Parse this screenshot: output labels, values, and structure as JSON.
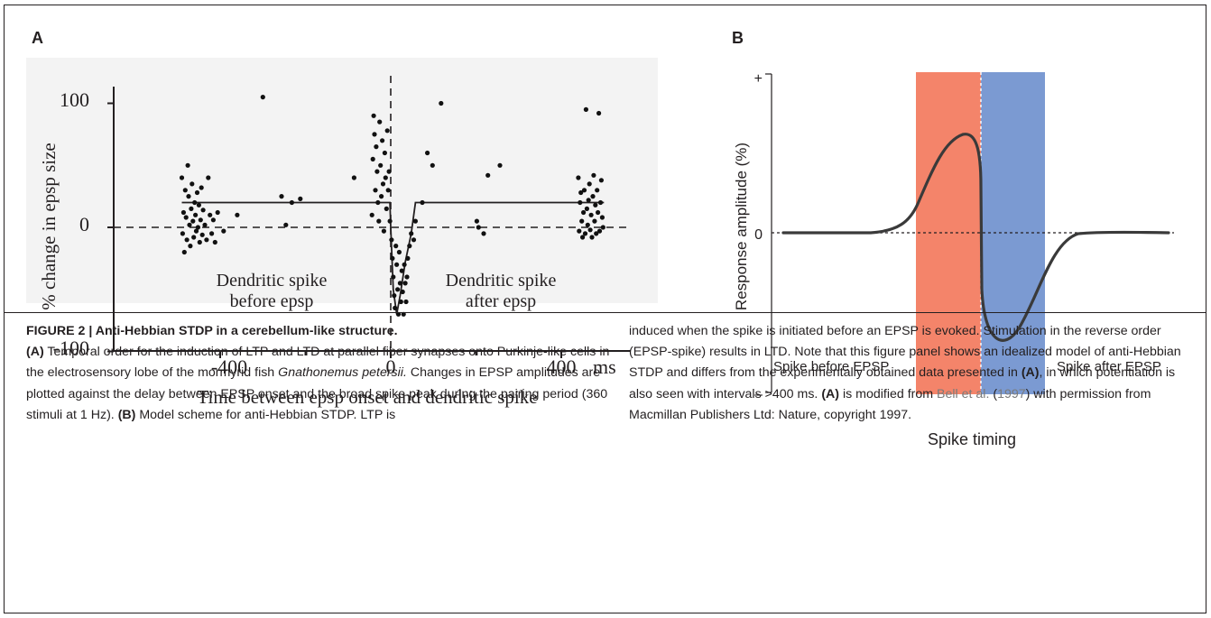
{
  "panel_a": {
    "letter": "A",
    "ylabel": "% change in epsp size",
    "xlabel": "Time between epsp onset and dendritic spike",
    "yticks": [
      "100",
      "0",
      "-100"
    ],
    "xticks": [
      "-400",
      "0",
      "400"
    ],
    "x_unit": "ms",
    "annot_before_1": "Dendritic spike",
    "annot_before_2": "before epsp",
    "annot_after_1": "Dendritic spike",
    "annot_after_2": "after epsp"
  },
  "panel_b": {
    "letter": "B",
    "ylabel": "Response amplitude (%)",
    "xlabel": "Spike timing",
    "tick_plus": "+",
    "tick_zero": "0",
    "tick_minus": "–",
    "left_label": "Spike before EPSP",
    "right_label": "Spike after EPSP",
    "colors": {
      "ltp_band": "#f4846a",
      "ltd_band": "#7b9ad2",
      "curve": "#3a3a3a"
    }
  },
  "chart_data": [
    {
      "type": "scatter",
      "panel": "A",
      "xlabel": "Time between epsp onset and dendritic spike",
      "x_unit": "ms",
      "ylabel": "% change in epsp size",
      "xlim": [
        -560,
        560
      ],
      "ylim": [
        -100,
        120
      ],
      "xticks": [
        -400,
        0,
        400
      ],
      "yticks": [
        100,
        0,
        -100
      ],
      "reference_lines": [
        {
          "orientation": "horizontal",
          "y": 0,
          "style": "dashed"
        },
        {
          "orientation": "vertical",
          "x": 0,
          "style": "dashed"
        }
      ],
      "series": [
        {
          "kind": "points",
          "points": [
            [
              -490,
              40
            ],
            [
              -488,
              -5
            ],
            [
              -486,
              12
            ],
            [
              -484,
              -20
            ],
            [
              -482,
              30
            ],
            [
              -480,
              8
            ],
            [
              -478,
              -10
            ],
            [
              -476,
              50
            ],
            [
              -474,
              25
            ],
            [
              -472,
              2
            ],
            [
              -470,
              -15
            ],
            [
              -468,
              15
            ],
            [
              -466,
              35
            ],
            [
              -464,
              5
            ],
            [
              -462,
              -8
            ],
            [
              -460,
              20
            ],
            [
              -458,
              10
            ],
            [
              -456,
              -3
            ],
            [
              -454,
              28
            ],
            [
              -452,
              0
            ],
            [
              -450,
              18
            ],
            [
              -448,
              -12
            ],
            [
              -446,
              6
            ],
            [
              -444,
              32
            ],
            [
              -442,
              -6
            ],
            [
              -440,
              14
            ],
            [
              -436,
              2
            ],
            [
              -432,
              -10
            ],
            [
              -428,
              40
            ],
            [
              -424,
              10
            ],
            [
              -420,
              -5
            ],
            [
              -416,
              6
            ],
            [
              -412,
              -12
            ],
            [
              -406,
              12
            ],
            [
              -392,
              -3
            ],
            [
              -360,
              10
            ],
            [
              -300,
              105
            ],
            [
              -256,
              25
            ],
            [
              -246,
              2
            ],
            [
              -232,
              20
            ],
            [
              -212,
              23
            ],
            [
              -86,
              40
            ],
            [
              -44,
              10
            ],
            [
              -42,
              55
            ],
            [
              -40,
              90
            ],
            [
              -38,
              75
            ],
            [
              -36,
              30
            ],
            [
              -34,
              65
            ],
            [
              -32,
              45
            ],
            [
              -30,
              20
            ],
            [
              -28,
              5
            ],
            [
              -26,
              85
            ],
            [
              -24,
              50
            ],
            [
              -22,
              25
            ],
            [
              -20,
              70
            ],
            [
              -18,
              35
            ],
            [
              -16,
              -3
            ],
            [
              -14,
              60
            ],
            [
              -12,
              40
            ],
            [
              -10,
              15
            ],
            [
              -8,
              78
            ],
            [
              -6,
              30
            ],
            [
              -4,
              45
            ],
            [
              -2,
              5
            ],
            [
              2,
              -10
            ],
            [
              4,
              -25
            ],
            [
              6,
              -40
            ],
            [
              8,
              -55
            ],
            [
              10,
              -65
            ],
            [
              12,
              -15
            ],
            [
              14,
              -30
            ],
            [
              16,
              -50
            ],
            [
              18,
              -70
            ],
            [
              20,
              -20
            ],
            [
              22,
              -45
            ],
            [
              24,
              -60
            ],
            [
              26,
              -35
            ],
            [
              28,
              -52
            ],
            [
              30,
              -70
            ],
            [
              32,
              -30
            ],
            [
              34,
              -45
            ],
            [
              36,
              -60
            ],
            [
              38,
              -40
            ],
            [
              40,
              -25
            ],
            [
              44,
              -15
            ],
            [
              48,
              -5
            ],
            [
              54,
              -10
            ],
            [
              58,
              5
            ],
            [
              74,
              20
            ],
            [
              86,
              60
            ],
            [
              98,
              50
            ],
            [
              118,
              100
            ],
            [
              228,
              42
            ],
            [
              202,
              5
            ],
            [
              206,
              0
            ],
            [
              218,
              -5
            ],
            [
              256,
              50
            ],
            [
              440,
              40
            ],
            [
              442,
              -3
            ],
            [
              444,
              20
            ],
            [
              446,
              28
            ],
            [
              448,
              5
            ],
            [
              450,
              -8
            ],
            [
              452,
              12
            ],
            [
              454,
              30
            ],
            [
              456,
              -5
            ],
            [
              458,
              95
            ],
            [
              460,
              15
            ],
            [
              462,
              2
            ],
            [
              464,
              22
            ],
            [
              466,
              35
            ],
            [
              468,
              -2
            ],
            [
              470,
              10
            ],
            [
              472,
              -8
            ],
            [
              474,
              25
            ],
            [
              476,
              42
            ],
            [
              478,
              5
            ],
            [
              480,
              18
            ],
            [
              482,
              -5
            ],
            [
              484,
              30
            ],
            [
              486,
              12
            ],
            [
              488,
              92
            ],
            [
              490,
              -3
            ],
            [
              492,
              20
            ],
            [
              494,
              38
            ],
            [
              496,
              8
            ],
            [
              498,
              0
            ]
          ]
        },
        {
          "kind": "fit-line",
          "points": [
            [
              -490,
              20
            ],
            [
              -2,
              20
            ],
            [
              0,
              0
            ],
            [
              6,
              -50
            ],
            [
              14,
              -70
            ],
            [
              22,
              -55
            ],
            [
              34,
              -28
            ],
            [
              48,
              -5
            ],
            [
              58,
              20
            ],
            [
              500,
              20
            ]
          ]
        }
      ]
    },
    {
      "type": "line",
      "panel": "B",
      "xlabel": "Spike timing",
      "ylabel": "Response amplitude (%)",
      "yticks": [
        "+",
        "0",
        "–"
      ],
      "note": "idealized model curve; no numeric x scale printed",
      "bands": [
        {
          "region": "before spike/EPSP coincidence",
          "color": "#f4846a"
        },
        {
          "region": "after spike/EPSP coincidence",
          "color": "#7b9ad2"
        }
      ],
      "reference_lines": [
        {
          "orientation": "horizontal",
          "y": 0,
          "style": "dotted"
        },
        {
          "orientation": "vertical",
          "x": 0,
          "style": "dotted"
        }
      ]
    }
  ],
  "caption": {
    "title": "FIGURE 2 | Anti-Hebbian STDP in a cerebellum-like structure.",
    "p1_a_label": "(A)",
    "p1_a_text": " Temporal order for the induction of LTP and LTD at parallel fiber synapses onto Purkinje-like cells in the electrosensory lobe of the mormyrid fish ",
    "p1_species": "Gnathonemus petersii.",
    "p1_b_text": " Changes in EPSP amplitudes are plotted against the delay between EPSP onset and the broad spike peak during the pairing period (360 stimuli at 1 Hz). ",
    "p1_b_label": "(B)",
    "p1_c_text": " Model scheme for anti-Hebbian STDP. LTP is",
    "p2_a_text": "induced when the spike is initiated before an EPSP is evoked. Stimulation in the reverse order (EPSP-spike) results in LTD. Note that this figure panel shows an idealized model of anti-Hebbian STDP and differs from the experimentally obtained data presented in ",
    "p2_a_label": "(A)",
    "p2_b_text": ", in which potentiation is also seen with intervals >400 ms. ",
    "p2_b_label": "(A)",
    "p2_c_text": " is modified from ",
    "p2_ref": "Bell et al.",
    "p2_ref_open": " (",
    "p2_ref_year": "1997",
    "p2_ref_close": ")",
    "p2_d_text": " with permission from Macmillan Publishers Ltd: Nature, copyright 1997."
  }
}
